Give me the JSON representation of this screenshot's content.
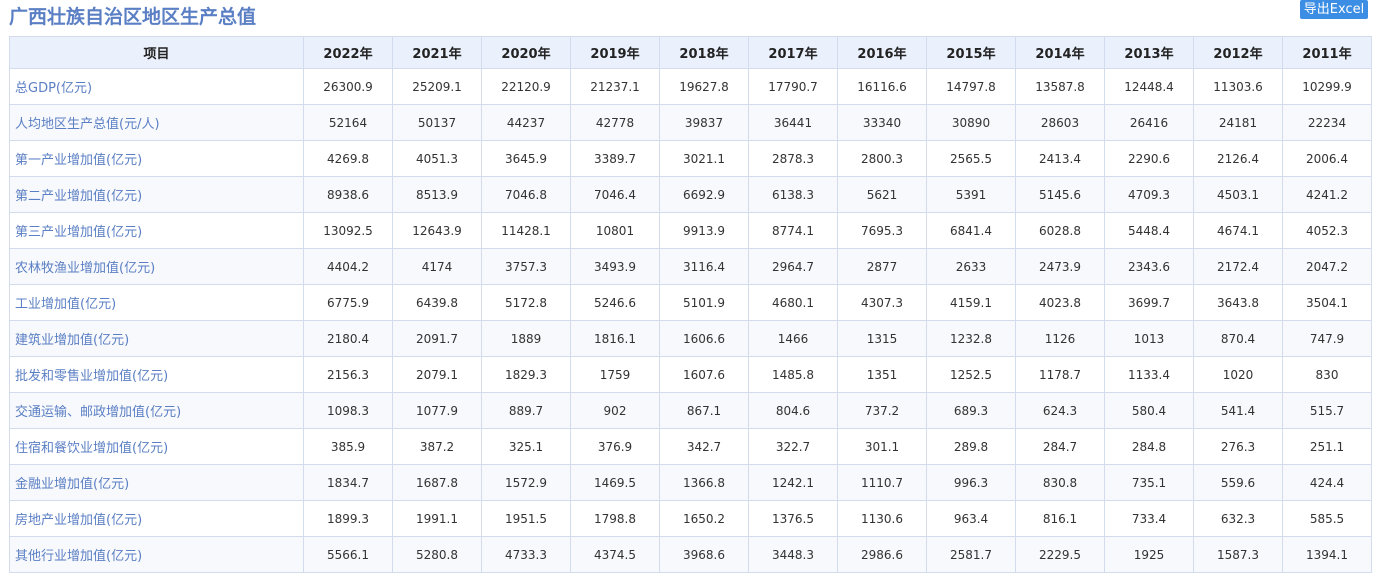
{
  "title": "广西壮族自治区地区生产总值",
  "export_label": "导出Excel",
  "table": {
    "header_label": "项目",
    "years": [
      "2022年",
      "2021年",
      "2020年",
      "2019年",
      "2018年",
      "2017年",
      "2016年",
      "2015年",
      "2014年",
      "2013年",
      "2012年",
      "2011年"
    ],
    "rows": [
      {
        "label": "总GDP(亿元)",
        "values": [
          "26300.9",
          "25209.1",
          "22120.9",
          "21237.1",
          "19627.8",
          "17790.7",
          "16116.6",
          "14797.8",
          "13587.8",
          "12448.4",
          "11303.6",
          "10299.9"
        ]
      },
      {
        "label": "人均地区生产总值(元/人)",
        "values": [
          "52164",
          "50137",
          "44237",
          "42778",
          "39837",
          "36441",
          "33340",
          "30890",
          "28603",
          "26416",
          "24181",
          "22234"
        ]
      },
      {
        "label": "第一产业增加值(亿元)",
        "values": [
          "4269.8",
          "4051.3",
          "3645.9",
          "3389.7",
          "3021.1",
          "2878.3",
          "2800.3",
          "2565.5",
          "2413.4",
          "2290.6",
          "2126.4",
          "2006.4"
        ]
      },
      {
        "label": "第二产业增加值(亿元)",
        "values": [
          "8938.6",
          "8513.9",
          "7046.8",
          "7046.4",
          "6692.9",
          "6138.3",
          "5621",
          "5391",
          "5145.6",
          "4709.3",
          "4503.1",
          "4241.2"
        ]
      },
      {
        "label": "第三产业增加值(亿元)",
        "values": [
          "13092.5",
          "12643.9",
          "11428.1",
          "10801",
          "9913.9",
          "8774.1",
          "7695.3",
          "6841.4",
          "6028.8",
          "5448.4",
          "4674.1",
          "4052.3"
        ]
      },
      {
        "label": "农林牧渔业增加值(亿元)",
        "values": [
          "4404.2",
          "4174",
          "3757.3",
          "3493.9",
          "3116.4",
          "2964.7",
          "2877",
          "2633",
          "2473.9",
          "2343.6",
          "2172.4",
          "2047.2"
        ]
      },
      {
        "label": "工业增加值(亿元)",
        "values": [
          "6775.9",
          "6439.8",
          "5172.8",
          "5246.6",
          "5101.9",
          "4680.1",
          "4307.3",
          "4159.1",
          "4023.8",
          "3699.7",
          "3643.8",
          "3504.1"
        ]
      },
      {
        "label": "建筑业增加值(亿元)",
        "values": [
          "2180.4",
          "2091.7",
          "1889",
          "1816.1",
          "1606.6",
          "1466",
          "1315",
          "1232.8",
          "1126",
          "1013",
          "870.4",
          "747.9"
        ]
      },
      {
        "label": "批发和零售业增加值(亿元)",
        "values": [
          "2156.3",
          "2079.1",
          "1829.3",
          "1759",
          "1607.6",
          "1485.8",
          "1351",
          "1252.5",
          "1178.7",
          "1133.4",
          "1020",
          "830"
        ]
      },
      {
        "label": "交通运输、邮政增加值(亿元)",
        "values": [
          "1098.3",
          "1077.9",
          "889.7",
          "902",
          "867.1",
          "804.6",
          "737.2",
          "689.3",
          "624.3",
          "580.4",
          "541.4",
          "515.7"
        ]
      },
      {
        "label": "住宿和餐饮业增加值(亿元)",
        "values": [
          "385.9",
          "387.2",
          "325.1",
          "376.9",
          "342.7",
          "322.7",
          "301.1",
          "289.8",
          "284.7",
          "284.8",
          "276.3",
          "251.1"
        ]
      },
      {
        "label": "金融业增加值(亿元)",
        "values": [
          "1834.7",
          "1687.8",
          "1572.9",
          "1469.5",
          "1366.8",
          "1242.1",
          "1110.7",
          "996.3",
          "830.8",
          "735.1",
          "559.6",
          "424.4"
        ]
      },
      {
        "label": "房地产业增加值(亿元)",
        "values": [
          "1899.3",
          "1991.1",
          "1951.5",
          "1798.8",
          "1650.2",
          "1376.5",
          "1130.6",
          "963.4",
          "816.1",
          "733.4",
          "632.3",
          "585.5"
        ]
      },
      {
        "label": "其他行业增加值(亿元)",
        "values": [
          "5566.1",
          "5280.8",
          "4733.3",
          "4374.5",
          "3968.6",
          "3448.3",
          "2986.6",
          "2581.7",
          "2229.5",
          "1925",
          "1587.3",
          "1394.1"
        ]
      }
    ]
  }
}
